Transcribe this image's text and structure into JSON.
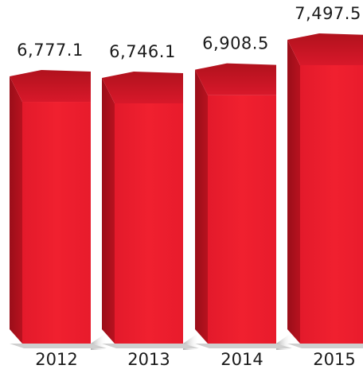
{
  "chart_data": {
    "type": "bar",
    "categories": [
      "2012",
      "2013",
      "2014",
      "2015"
    ],
    "values": [
      6777.1,
      6746.1,
      6908.5,
      7497.5
    ],
    "value_labels": [
      "6,777.1",
      "6,746.1",
      "6,908.5",
      "7,497.5"
    ],
    "title": "",
    "xlabel": "",
    "ylabel": "",
    "grid": false,
    "legend": "none",
    "colors": {
      "front": "#ee1c2e",
      "side": "#a5101c",
      "top": "#c8141f",
      "shadow": "#bdbdbd"
    }
  }
}
